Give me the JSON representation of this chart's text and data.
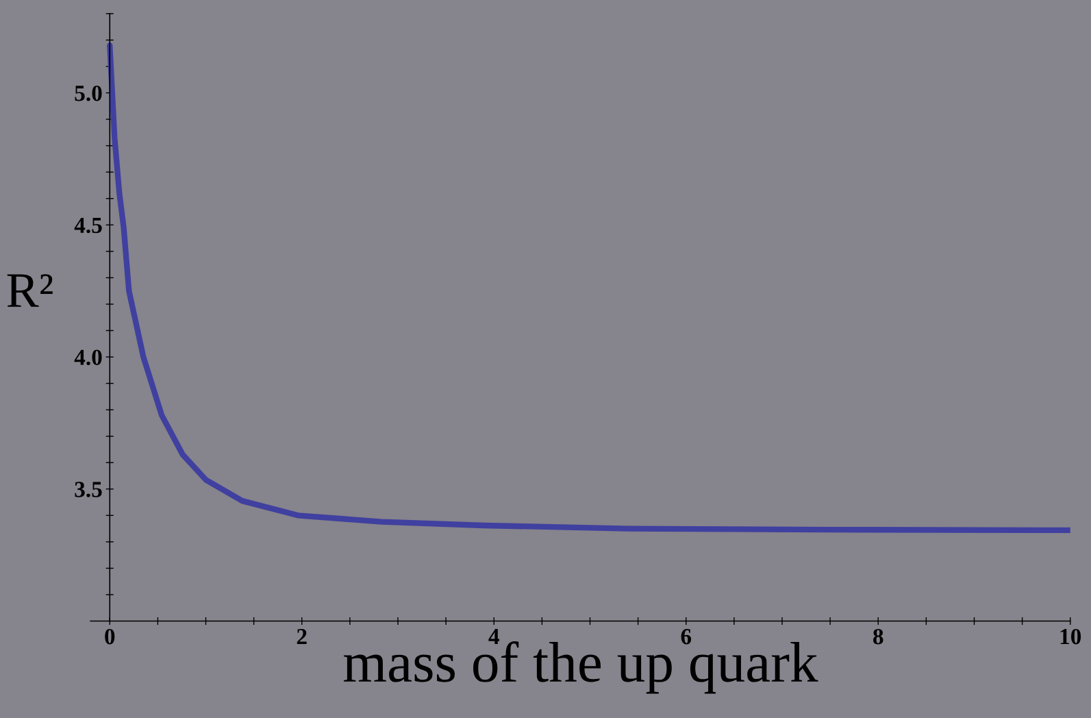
{
  "chart_data": {
    "type": "line",
    "xlabel": "mass of the up quark",
    "ylabel": "R²",
    "x": [
      0,
      0.05,
      0.1,
      0.145,
      0.2,
      0.35,
      0.54,
      0.76,
      1.0,
      1.38,
      1.96,
      2.83,
      3.9,
      5.4,
      7.5,
      10
    ],
    "series": [
      {
        "color": "#4040a0",
        "values": [
          5.18,
          4.83,
          4.62,
          4.49,
          4.25,
          4.0,
          3.78,
          3.63,
          3.535,
          3.455,
          3.4,
          3.376,
          3.362,
          3.35,
          3.346,
          3.344
        ]
      }
    ],
    "xlim": [
      -0.2,
      10
    ],
    "ylim": [
      3.0,
      5.3
    ],
    "xticks": [
      {
        "value": 0,
        "label": "0"
      },
      {
        "value": 0.5,
        "label": null
      },
      {
        "value": 1,
        "label": null
      },
      {
        "value": 1.5,
        "label": null
      },
      {
        "value": 2,
        "label": "2"
      },
      {
        "value": 2.5,
        "label": null
      },
      {
        "value": 3,
        "label": null
      },
      {
        "value": 3.5,
        "label": null
      },
      {
        "value": 4,
        "label": "4"
      },
      {
        "value": 4.5,
        "label": null
      },
      {
        "value": 5,
        "label": null
      },
      {
        "value": 5.5,
        "label": null
      },
      {
        "value": 6,
        "label": "6"
      },
      {
        "value": 6.5,
        "label": null
      },
      {
        "value": 7,
        "label": null
      },
      {
        "value": 7.5,
        "label": null
      },
      {
        "value": 8,
        "label": "8"
      },
      {
        "value": 8.5,
        "label": null
      },
      {
        "value": 9,
        "label": null
      },
      {
        "value": 9.5,
        "label": null
      },
      {
        "value": 10,
        "label": "10"
      }
    ],
    "yticks": [
      {
        "value": 3.1,
        "label": null
      },
      {
        "value": 3.2,
        "label": null
      },
      {
        "value": 3.3,
        "label": null
      },
      {
        "value": 3.4,
        "label": null
      },
      {
        "value": 3.5,
        "label": "3.5"
      },
      {
        "value": 3.6,
        "label": null
      },
      {
        "value": 3.7,
        "label": null
      },
      {
        "value": 3.8,
        "label": null
      },
      {
        "value": 3.9,
        "label": null
      },
      {
        "value": 4.0,
        "label": "4.0"
      },
      {
        "value": 4.1,
        "label": null
      },
      {
        "value": 4.2,
        "label": null
      },
      {
        "value": 4.3,
        "label": null
      },
      {
        "value": 4.4,
        "label": null
      },
      {
        "value": 4.5,
        "label": "4.5"
      },
      {
        "value": 4.6,
        "label": null
      },
      {
        "value": 4.7,
        "label": null
      },
      {
        "value": 4.8,
        "label": null
      },
      {
        "value": 4.9,
        "label": null
      },
      {
        "value": 5.0,
        "label": "5.0"
      },
      {
        "value": 5.1,
        "label": null
      },
      {
        "value": 5.2,
        "label": null
      },
      {
        "value": 5.3,
        "label": null
      }
    ],
    "grid": false,
    "legend": false,
    "marker": "none",
    "line_style": "solid"
  }
}
